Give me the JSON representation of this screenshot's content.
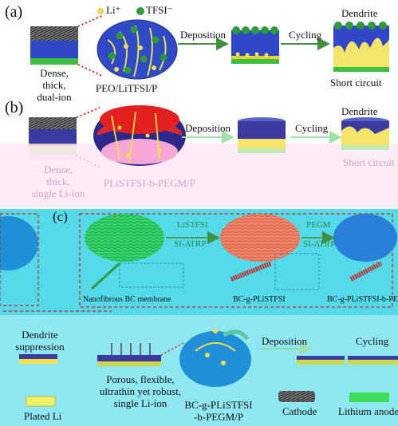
{
  "panel_a": {
    "letter": "(a)",
    "legend_li": "Li⁺",
    "legend_tfsi": "TFSI⁻",
    "anode_caption": [
      "Dense,",
      "thick,",
      "dual-ion"
    ],
    "electrolyte": "PEO/LiTFSI/P",
    "step1": "Deposition",
    "step2": "Cycling",
    "result_top": "Dendrite",
    "result_bottom": "Short circuit"
  },
  "panel_b": {
    "letter": "(b)",
    "anode_caption": [
      "Dense,",
      "thick,",
      "single Li-ion"
    ],
    "electrolyte": "PLiSTFSI-b-PEGM/P",
    "step1": "Deposition",
    "step2": "Cycling",
    "result_top": "Dendrite",
    "result_bottom": "Short circuit"
  },
  "panel_c": {
    "letter": "(c)",
    "step1_top": "LiSTFSI",
    "step1_bottom": "SI-ATRP",
    "step2_top": "PEGM",
    "step2_bottom": "SI-ATRP",
    "membrane_label": "Nanofibrous BC membrane",
    "graft1_label": "BC-g-PLiSTFSI",
    "graft2_label": "BC-g-PLiSTFSI-b-PEGM",
    "dendrite_top": "Dendrite",
    "dendrite_bottom": "suppression",
    "membrane_caption": [
      "Porous, flexible,",
      "ultrathin yet robust,",
      "single Li-ion"
    ],
    "electrolyte": [
      "BC-g-PLiSTFSI",
      "-b-PEGM/P"
    ],
    "step_deposition": "Deposition",
    "step_cycling": "Cycling"
  },
  "legend": {
    "plated_li": "Plated Li",
    "cathode": "Cathode",
    "lithium_anode": "Lithium anode"
  },
  "colors": {
    "blue": "#2f49c9",
    "navy": "#2b2a8c",
    "green": "#3fbf3f",
    "yellow": "#f2e04a",
    "arrow_green": "#3f8f3f",
    "dashed_red": "#d21f1f",
    "cyan_bg": "#48d6e6",
    "pink_bg": "#fbe3f0"
  }
}
